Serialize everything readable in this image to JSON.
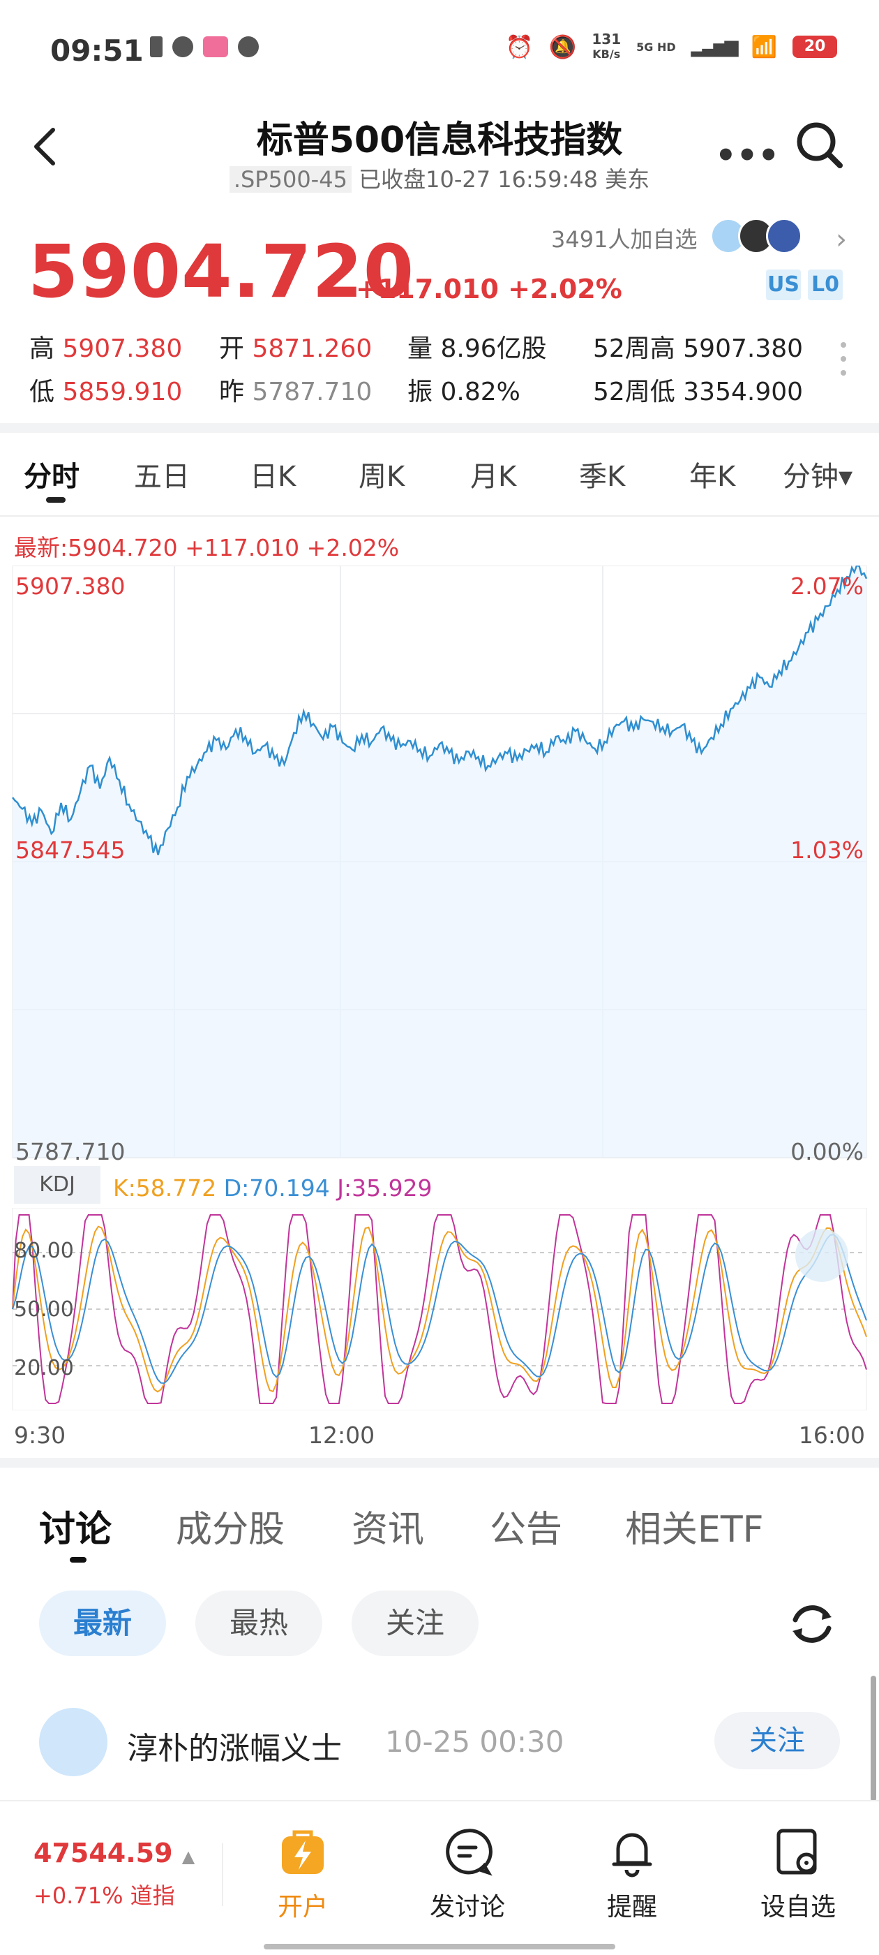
{
  "status": {
    "time": "09:51",
    "net_speed_value": "131",
    "net_speed_unit": "KB/s",
    "net_type": "5G HD",
    "battery": "20"
  },
  "header": {
    "title": "标普500信息科技指数",
    "code": ".SP500-45",
    "status_text": "已收盘10-27 16:59:48 美东"
  },
  "quote": {
    "price": "5904.720",
    "change": "+117.010 +2.02%",
    "watchers": "3491人加自选",
    "tags": [
      "US",
      "L0"
    ],
    "stats": [
      {
        "label": "高",
        "value": "5907.380"
      },
      {
        "label": "开",
        "value": "5871.260"
      },
      {
        "label": "量",
        "value": "8.96亿股"
      },
      {
        "label": "52周高",
        "value": "5907.380"
      },
      {
        "label": "低",
        "value": "5859.910"
      },
      {
        "label": "昨",
        "value": "5787.710"
      },
      {
        "label": "振",
        "value": "0.82%"
      },
      {
        "label": "52周低",
        "value": "3354.900"
      }
    ]
  },
  "period_tabs": [
    "分时",
    "五日",
    "日K",
    "周K",
    "月K",
    "季K",
    "年K",
    "分钟▾"
  ],
  "latest_line": "最新:5904.720 +117.010 +2.02%",
  "chart": {
    "y_left": [
      "5907.380",
      "5847.545",
      "5787.710"
    ],
    "y_right": [
      "2.07%",
      "1.03%",
      "0.00%"
    ],
    "kdj_label": "KDJ",
    "kdj_k": "K:58.772",
    "kdj_d": "D:70.194",
    "kdj_j": "J:35.929",
    "kdj_levels": [
      "80.00",
      "50.00",
      "20.00"
    ],
    "x_labels": [
      "9:30",
      "12:00",
      "16:00"
    ],
    "colors": {
      "line": "#2f8fd0",
      "k": "#f0a020",
      "d": "#3a8fd4",
      "j": "#c0359a"
    }
  },
  "chart_data": {
    "type": "line",
    "x_range": [
      "9:30",
      "16:00"
    ],
    "ylim": [
      5787.71,
      5907.38
    ],
    "series": [
      {
        "values": [
          5860.5,
          5858.2,
          5855.1,
          5857.8,
          5853.2,
          5859.4,
          5856.1,
          5861.8,
          5866.9,
          5862.3,
          5868.5,
          5864.0,
          5859.1,
          5855.7,
          5852.3,
          5848.9,
          5854.2,
          5858.5,
          5864.7,
          5867.0,
          5869.8,
          5872.1,
          5870.3,
          5874.2,
          5872.8,
          5869.5,
          5871.0,
          5868.4,
          5867.2,
          5873.6,
          5877.9,
          5875.4,
          5872.3,
          5874.8,
          5871.6,
          5870.2,
          5873.1,
          5871.7,
          5874.5,
          5872.0,
          5870.8,
          5871.9,
          5870.2,
          5868.9,
          5871.3,
          5869.5,
          5867.6,
          5869.8,
          5868.7,
          5866.9,
          5868.5,
          5869.4,
          5868.1,
          5870.0,
          5871.2,
          5869.7,
          5872.8,
          5871.5,
          5873.9,
          5872.1,
          5870.4,
          5871.8,
          5874.7,
          5875.9,
          5874.2,
          5876.3,
          5875.8,
          5874.7,
          5873.9,
          5875.1,
          5871.8,
          5869.5,
          5872.6,
          5875.3,
          5878.4,
          5880.2,
          5882.6,
          5884.8,
          5882.9,
          5886.1,
          5888.0,
          5890.7,
          5893.9,
          5896.4,
          5899.2,
          5902.5,
          5905.1,
          5907.38,
          5904.72
        ]
      }
    ]
  },
  "discussion_tabs": [
    "讨论",
    "成分股",
    "资讯",
    "公告",
    "相关ETF"
  ],
  "filter_pills": [
    "最新",
    "最热",
    "关注"
  ],
  "post": {
    "user": "淳朴的涨幅义士",
    "time": "10-25 00:30",
    "follow_label": "关注"
  },
  "bottom_nav": {
    "dji_value": "47544.59",
    "dji_change": "+0.71% 道指",
    "items": [
      "开户",
      "发讨论",
      "提醒",
      "设自选"
    ]
  }
}
